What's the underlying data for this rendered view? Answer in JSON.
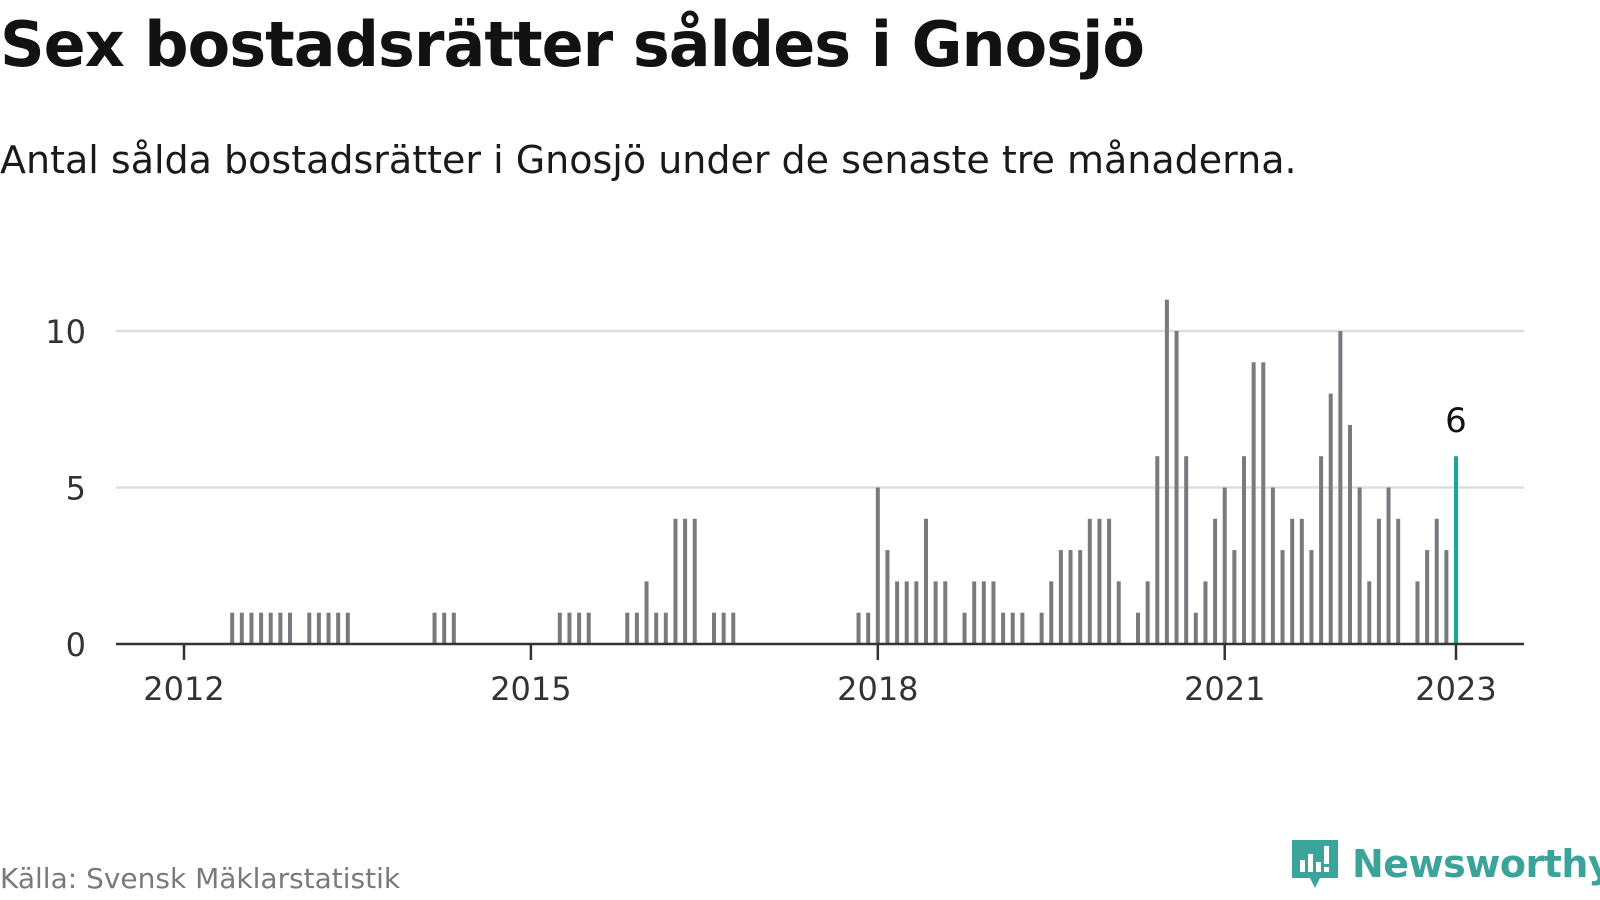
{
  "header": {
    "title": "Sex bostadsrätter såldes i Gnosjö",
    "subtitle": "Antal sålda bostadsrätter i Gnosjö under de senaste tre månaderna."
  },
  "footer": {
    "source": "Källa: Svensk Mäklarstatistik",
    "brand": "Newsworthy"
  },
  "colors": {
    "bar": "#7a7a7e",
    "highlight": "#1aa79a",
    "grid": "#dddddd",
    "axis": "#333333",
    "brand": "#3aa39a"
  },
  "chart_data": {
    "type": "bar",
    "xlabel": "",
    "ylabel": "",
    "ylim": [
      0,
      12
    ],
    "yticks": [
      0,
      5,
      10
    ],
    "xticks": [
      {
        "date": "2012-01",
        "label": "2012"
      },
      {
        "date": "2015-01",
        "label": "2015"
      },
      {
        "date": "2018-01",
        "label": "2018"
      },
      {
        "date": "2021-01",
        "label": "2021"
      },
      {
        "date": "2023-01",
        "label": "2023"
      }
    ],
    "grid": true,
    "highlight": {
      "date": "2023-01",
      "value": 6,
      "label": "6"
    },
    "series": [
      {
        "x": [
          "2012-06",
          "2012-07",
          "2012-08",
          "2012-09",
          "2012-10",
          "2012-11",
          "2012-12",
          "2013-02",
          "2013-03",
          "2013-04",
          "2013-05",
          "2013-06",
          "2014-03",
          "2014-04",
          "2014-05",
          "2015-04",
          "2015-05",
          "2015-06",
          "2015-07",
          "2015-11",
          "2015-12",
          "2016-01",
          "2016-02",
          "2016-03",
          "2016-04",
          "2016-05",
          "2016-06",
          "2016-08",
          "2016-09",
          "2016-10",
          "2017-11",
          "2017-12",
          "2018-01",
          "2018-02",
          "2018-03",
          "2018-04",
          "2018-05",
          "2018-06",
          "2018-07",
          "2018-08",
          "2018-10",
          "2018-11",
          "2018-12",
          "2019-01",
          "2019-02",
          "2019-03",
          "2019-04",
          "2019-06",
          "2019-07",
          "2019-08",
          "2019-09",
          "2019-10",
          "2019-11",
          "2019-12",
          "2020-01",
          "2020-02",
          "2020-04",
          "2020-05",
          "2020-06",
          "2020-07",
          "2020-08",
          "2020-09",
          "2020-10",
          "2020-11",
          "2020-12",
          "2021-01",
          "2021-02",
          "2021-03",
          "2021-04",
          "2021-05",
          "2021-06",
          "2021-07",
          "2021-08",
          "2021-09",
          "2021-10",
          "2021-11",
          "2021-12",
          "2022-01",
          "2022-02",
          "2022-03",
          "2022-04",
          "2022-05",
          "2022-06",
          "2022-07",
          "2022-09",
          "2022-10",
          "2022-11",
          "2022-12",
          "2023-01"
        ],
        "values": [
          1,
          1,
          1,
          1,
          1,
          1,
          1,
          1,
          1,
          1,
          1,
          1,
          1,
          1,
          1,
          1,
          1,
          1,
          1,
          1,
          1,
          2,
          1,
          1,
          4,
          4,
          4,
          1,
          1,
          1,
          1,
          1,
          5,
          3,
          2,
          2,
          2,
          4,
          2,
          2,
          1,
          2,
          2,
          2,
          1,
          1,
          1,
          1,
          2,
          3,
          3,
          3,
          4,
          4,
          4,
          2,
          1,
          2,
          6,
          11,
          10,
          6,
          1,
          2,
          4,
          5,
          3,
          6,
          9,
          9,
          5,
          3,
          4,
          4,
          3,
          6,
          8,
          10,
          7,
          5,
          2,
          4,
          5,
          4,
          2,
          3,
          4,
          3,
          6
        ]
      }
    ]
  }
}
